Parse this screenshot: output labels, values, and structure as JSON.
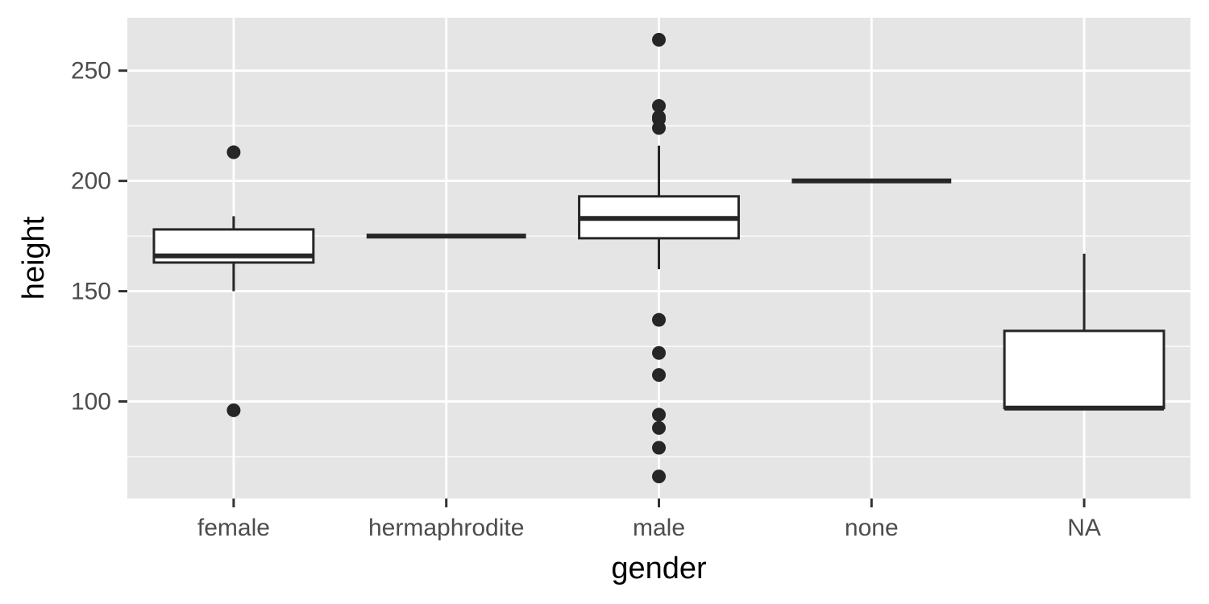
{
  "chart_data": {
    "type": "boxplot",
    "xlabel": "gender",
    "ylabel": "height",
    "ylim": [
      56,
      274
    ],
    "y_ticks": [
      100,
      150,
      200,
      250
    ],
    "y_minor_ticks": [
      75,
      125,
      175,
      225
    ],
    "grid": true,
    "categories": [
      "female",
      "hermaphrodite",
      "male",
      "none",
      "NA"
    ],
    "boxes": [
      {
        "category": "female",
        "q1": 163,
        "median": 166,
        "q3": 178,
        "whisker_low": 150,
        "whisker_high": 184,
        "outliers": [
          213,
          96
        ]
      },
      {
        "category": "hermaphrodite",
        "q1": 175,
        "median": 175,
        "q3": 175,
        "whisker_low": 175,
        "whisker_high": 175,
        "outliers": []
      },
      {
        "category": "male",
        "q1": 174,
        "median": 183,
        "q3": 193,
        "whisker_low": 160,
        "whisker_high": 216,
        "outliers": [
          264,
          234,
          229,
          228,
          224,
          137,
          122,
          112,
          94,
          88,
          79,
          66
        ]
      },
      {
        "category": "none",
        "q1": 200,
        "median": 200,
        "q3": 200,
        "whisker_low": 200,
        "whisker_high": 200,
        "outliers": []
      },
      {
        "category": "NA",
        "q1": 97,
        "median": 97,
        "q3": 132,
        "whisker_low": 97,
        "whisker_high": 167,
        "outliers": []
      }
    ],
    "colors": {
      "panel": "#e5e5e5",
      "grid": "#ffffff",
      "box_fill": "#ffffff",
      "box_line": "#262626",
      "point": "#262626",
      "tick": "#333333"
    }
  }
}
